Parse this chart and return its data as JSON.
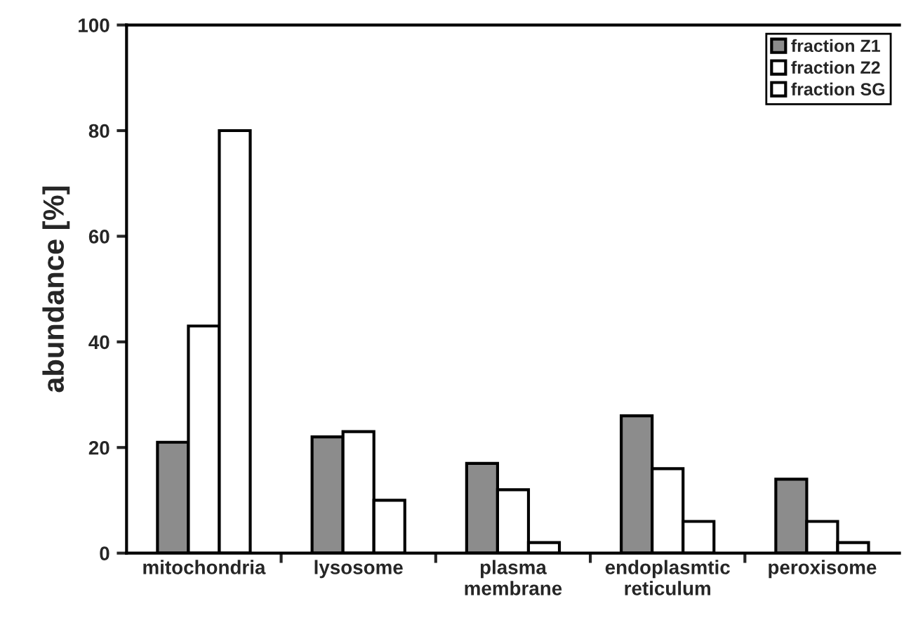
{
  "chart_data": {
    "type": "bar",
    "ylabel": "abundance [%]",
    "categories": [
      "mitochondria",
      "lysosome",
      "plasma\nmembrane",
      "endoplasmtic\nreticulum",
      "peroxisome"
    ],
    "series": [
      {
        "name": "fraction Z1",
        "color": "#8c8c8c",
        "values": [
          21,
          22,
          17,
          26,
          14
        ]
      },
      {
        "name": "fraction Z2",
        "color": "#ffffff",
        "values": [
          43,
          23,
          12,
          16,
          6
        ]
      },
      {
        "name": "fraction SG",
        "color": "#ffffff",
        "values": [
          80,
          10,
          2,
          6,
          2
        ]
      }
    ],
    "ylim": [
      0,
      100
    ],
    "yticks": [
      0,
      20,
      40,
      60,
      80,
      100
    ],
    "grid": false,
    "legend": "top right"
  }
}
